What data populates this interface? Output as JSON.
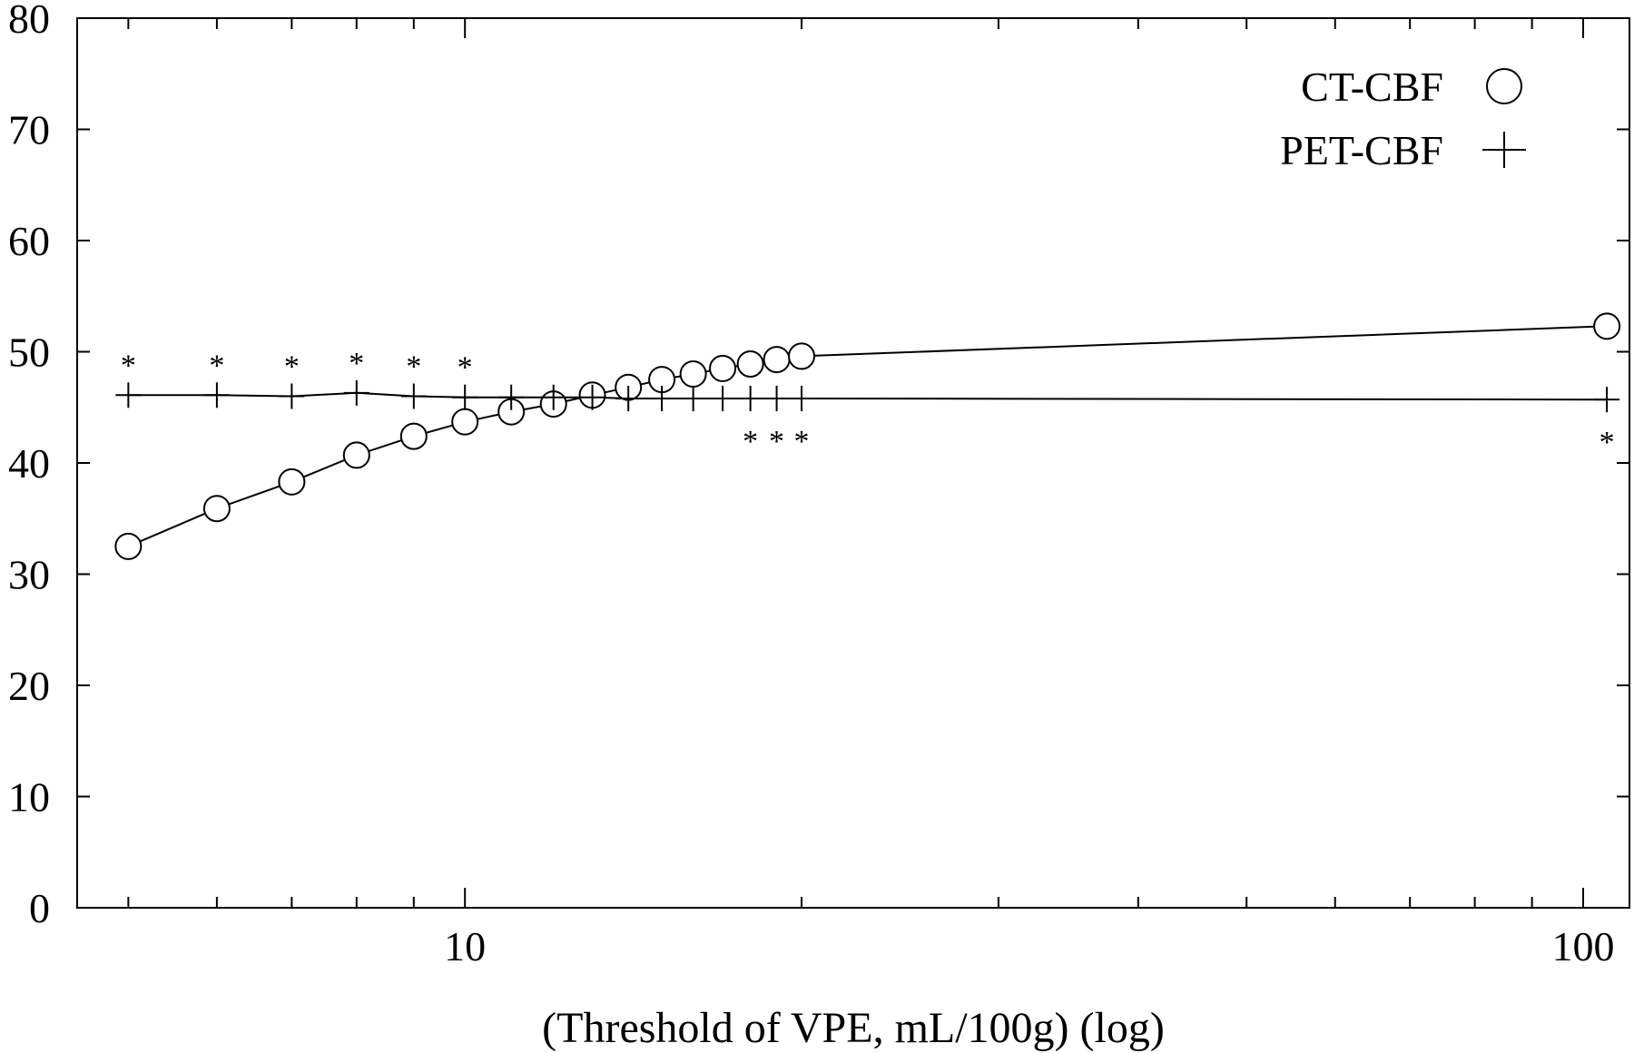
{
  "chart_data": {
    "type": "line",
    "xlabel": "(Threshold of VPE, mL/100g) (log)",
    "ylabel": "",
    "xscale": "log",
    "xlim": [
      4.5,
      110
    ],
    "ylim": [
      0,
      80
    ],
    "yticks": [
      0,
      10,
      20,
      30,
      40,
      50,
      60,
      70,
      80
    ],
    "xticks": [
      5,
      6,
      7,
      8,
      9,
      10,
      20,
      30,
      40,
      50,
      60,
      70,
      80,
      90,
      100
    ],
    "xtick_labels": [
      {
        "value": 10,
        "label": "10"
      },
      {
        "value": 100,
        "label": "100"
      }
    ],
    "grid": false,
    "legend_position": "top-right",
    "series": [
      {
        "name": "CT-CBF",
        "marker": "circle",
        "x": [
          5,
          6,
          7,
          8,
          9,
          10,
          11,
          12,
          13,
          14,
          15,
          16,
          17,
          18,
          19,
          20,
          105
        ],
        "y": [
          32.5,
          35.9,
          38.3,
          40.7,
          42.4,
          43.7,
          44.6,
          45.3,
          46.1,
          46.8,
          47.5,
          48.0,
          48.5,
          48.9,
          49.3,
          49.6,
          52.3
        ]
      },
      {
        "name": "PET-CBF",
        "marker": "plus",
        "x": [
          5,
          6,
          7,
          8,
          9,
          10,
          11,
          12,
          13,
          14,
          15,
          16,
          17,
          18,
          19,
          20,
          105
        ],
        "y": [
          46.1,
          46.1,
          46.0,
          46.3,
          46.0,
          45.9,
          45.9,
          45.9,
          45.9,
          45.8,
          45.8,
          45.8,
          45.8,
          45.8,
          45.8,
          45.8,
          45.7
        ]
      }
    ],
    "annotations": [
      {
        "x": 5,
        "text": "*",
        "position": "above"
      },
      {
        "x": 6,
        "text": "*",
        "position": "above"
      },
      {
        "x": 7,
        "text": "*",
        "position": "above"
      },
      {
        "x": 8,
        "text": "*",
        "position": "above"
      },
      {
        "x": 9,
        "text": "*",
        "position": "above"
      },
      {
        "x": 10,
        "text": "*",
        "position": "above"
      },
      {
        "x": 18,
        "text": "*",
        "position": "below"
      },
      {
        "x": 19,
        "text": "*",
        "position": "below"
      },
      {
        "x": 20,
        "text": "*",
        "position": "below"
      },
      {
        "x": 105,
        "text": "*",
        "position": "below"
      }
    ]
  }
}
